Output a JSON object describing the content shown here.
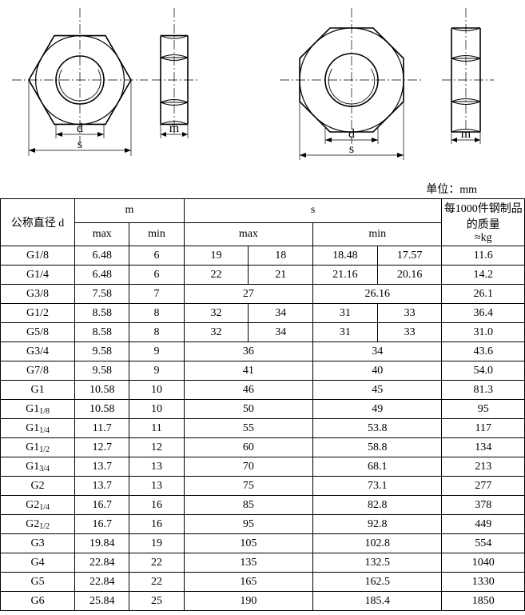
{
  "unit_label": "单位：mm",
  "diagram": {
    "labels": {
      "d": "d",
      "s": "s",
      "m": "m"
    },
    "stroke_color": "#000000",
    "centerline_color": "#000000",
    "background": "#ffffff"
  },
  "table": {
    "border_color": "#000000",
    "background_color": "#ffffff",
    "text_color": "#000000",
    "font_size_pt": 11,
    "headers": {
      "d": "公称直径 d",
      "m": "m",
      "m_max": "max",
      "m_min": "min",
      "s": "s",
      "s_max": "max",
      "s_min": "min",
      "weight": "每1000件钢制品的质量",
      "weight_approx": "≈kg"
    },
    "rows": [
      {
        "d": "G1/8",
        "m_max": "6.48",
        "m_min": "6",
        "s_max": [
          "19",
          "18"
        ],
        "s_min": [
          "18.48",
          "17.57"
        ],
        "weight": "11.6",
        "split_s": true
      },
      {
        "d": "G1/4",
        "m_max": "6.48",
        "m_min": "6",
        "s_max": [
          "22",
          "21"
        ],
        "s_min": [
          "21.16",
          "20.16"
        ],
        "weight": "14.2",
        "split_s": true
      },
      {
        "d": "G3/8",
        "m_max": "7.58",
        "m_min": "7",
        "s_max": [
          "27"
        ],
        "s_min": [
          "26.16"
        ],
        "weight": "26.1",
        "split_s": false
      },
      {
        "d": "G1/2",
        "m_max": "8.58",
        "m_min": "8",
        "s_max": [
          "32",
          "34"
        ],
        "s_min": [
          "31",
          "33"
        ],
        "weight": "36.4",
        "split_s": true
      },
      {
        "d": "G5/8",
        "m_max": "8.58",
        "m_min": "8",
        "s_max": [
          "32",
          "34"
        ],
        "s_min": [
          "31",
          "33"
        ],
        "weight": "31.0",
        "split_s": true
      },
      {
        "d": "G3/4",
        "m_max": "9.58",
        "m_min": "9",
        "s_max": [
          "36"
        ],
        "s_min": [
          "34"
        ],
        "weight": "43.6",
        "split_s": false
      },
      {
        "d": "G7/8",
        "m_max": "9.58",
        "m_min": "9",
        "s_max": [
          "41"
        ],
        "s_min": [
          "40"
        ],
        "weight": "54.0",
        "split_s": false
      },
      {
        "d": "G1",
        "m_max": "10.58",
        "m_min": "10",
        "s_max": [
          "46"
        ],
        "s_min": [
          "45"
        ],
        "weight": "81.3",
        "split_s": false
      },
      {
        "d": "G1|1/8",
        "m_max": "10.58",
        "m_min": "10",
        "s_max": [
          "50"
        ],
        "s_min": [
          "49"
        ],
        "weight": "95",
        "split_s": false
      },
      {
        "d": "G1|1/4",
        "m_max": "11.7",
        "m_min": "11",
        "s_max": [
          "55"
        ],
        "s_min": [
          "53.8"
        ],
        "weight": "117",
        "split_s": false
      },
      {
        "d": "G1|1/2",
        "m_max": "12.7",
        "m_min": "12",
        "s_max": [
          "60"
        ],
        "s_min": [
          "58.8"
        ],
        "weight": "134",
        "split_s": false
      },
      {
        "d": "G1|3/4",
        "m_max": "13.7",
        "m_min": "13",
        "s_max": [
          "70"
        ],
        "s_min": [
          "68.1"
        ],
        "weight": "213",
        "split_s": false
      },
      {
        "d": "G2",
        "m_max": "13.7",
        "m_min": "13",
        "s_max": [
          "75"
        ],
        "s_min": [
          "73.1"
        ],
        "weight": "277",
        "split_s": false
      },
      {
        "d": "G2|1/4",
        "m_max": "16.7",
        "m_min": "16",
        "s_max": [
          "85"
        ],
        "s_min": [
          "82.8"
        ],
        "weight": "378",
        "split_s": false
      },
      {
        "d": "G2|1/2",
        "m_max": "16.7",
        "m_min": "16",
        "s_max": [
          "95"
        ],
        "s_min": [
          "92.8"
        ],
        "weight": "449",
        "split_s": false
      },
      {
        "d": "G3",
        "m_max": "19.84",
        "m_min": "19",
        "s_max": [
          "105"
        ],
        "s_min": [
          "102.8"
        ],
        "weight": "554",
        "split_s": false
      },
      {
        "d": "G4",
        "m_max": "22.84",
        "m_min": "22",
        "s_max": [
          "135"
        ],
        "s_min": [
          "132.5"
        ],
        "weight": "1040",
        "split_s": false
      },
      {
        "d": "G5",
        "m_max": "22.84",
        "m_min": "22",
        "s_max": [
          "165"
        ],
        "s_min": [
          "162.5"
        ],
        "weight": "1330",
        "split_s": false
      },
      {
        "d": "G6",
        "m_max": "25.84",
        "m_min": "25",
        "s_max": [
          "190"
        ],
        "s_min": [
          "185.4"
        ],
        "weight": "1850",
        "split_s": false
      }
    ]
  }
}
